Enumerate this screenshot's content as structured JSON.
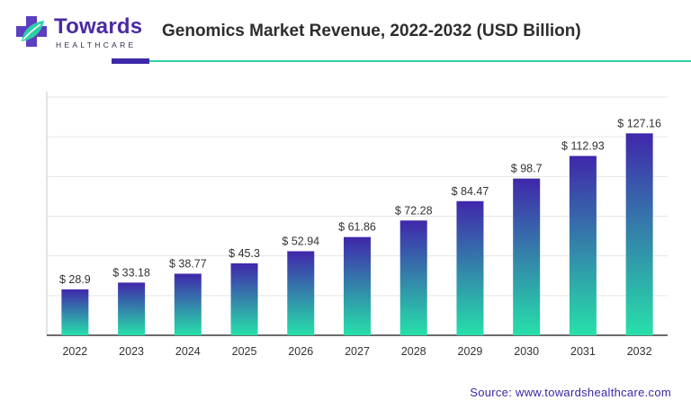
{
  "logo": {
    "name": "Towards",
    "subtitle": "HEALTHCARE"
  },
  "colors": {
    "brand_purple": "#3d2aa8",
    "brand_teal": "#2fcfa6",
    "bar_top": "#4027ab",
    "bar_bottom": "#27e0aa"
  },
  "source": "Source: www.towardshealthcare.com",
  "chart_data": {
    "type": "bar",
    "title": "Genomics Market Revenue, 2022-2032 (USD Billion)",
    "xlabel": "",
    "ylabel": "",
    "categories": [
      "2022",
      "2023",
      "2024",
      "2025",
      "2026",
      "2027",
      "2028",
      "2029",
      "2030",
      "2031",
      "2032"
    ],
    "values": [
      28.9,
      33.18,
      38.77,
      45.3,
      52.94,
      61.86,
      72.28,
      84.47,
      98.7,
      112.93,
      127.16
    ],
    "data_labels": [
      "$ 28.9",
      "$ 33.18",
      "$ 38.77",
      "$ 45.3",
      "$ 52.94",
      "$ 61.86",
      "$ 72.28",
      "$ 84.47",
      "$ 98.7",
      "$ 112.93",
      "$ 127.16"
    ],
    "ylim": [
      0,
      150
    ],
    "grid": true,
    "legend": "none"
  }
}
